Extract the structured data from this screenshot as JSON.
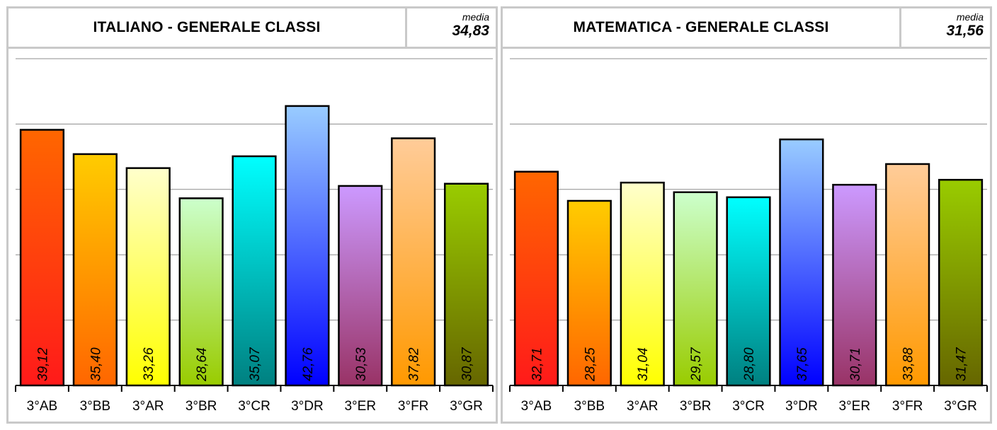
{
  "charts": [
    {
      "title": "ITALIANO - GENERALE CLASSI",
      "media_label": "media",
      "media_value": "34,83"
    },
    {
      "title": "MATEMATICA - GENERALE CLASSI",
      "media_label": "media",
      "media_value": "31,56"
    }
  ],
  "chart_data": [
    {
      "type": "bar",
      "title": "ITALIANO - GENERALE CLASSI",
      "categories": [
        "3°AB",
        "3°BB",
        "3°AR",
        "3°BR",
        "3°CR",
        "3°DR",
        "3°ER",
        "3°FR",
        "3°GR"
      ],
      "values": [
        39.12,
        35.4,
        33.26,
        28.64,
        35.07,
        42.76,
        30.53,
        37.82,
        30.87
      ],
      "value_labels": [
        "39,12",
        "35,40",
        "33,26",
        "28,64",
        "35,07",
        "42,76",
        "30,53",
        "37,82",
        "30,87"
      ],
      "ylim": [
        0,
        50
      ],
      "grid": true,
      "colors": [
        [
          "#ff6600",
          "#ff1a1a"
        ],
        [
          "#ffcc00",
          "#ff6600"
        ],
        [
          "#ffffcc",
          "#ffff00"
        ],
        [
          "#ccffcc",
          "#99cc00"
        ],
        [
          "#00ffff",
          "#008080"
        ],
        [
          "#99ccff",
          "#0000ff"
        ],
        [
          "#cc99ff",
          "#993366"
        ],
        [
          "#ffcc99",
          "#ff9900"
        ],
        [
          "#99cc00",
          "#666600"
        ]
      ]
    },
    {
      "type": "bar",
      "title": "MATEMATICA - GENERALE CLASSI",
      "categories": [
        "3°AB",
        "3°BB",
        "3°AR",
        "3°BR",
        "3°CR",
        "3°DR",
        "3°ER",
        "3°FR",
        "3°GR"
      ],
      "values": [
        32.71,
        28.25,
        31.04,
        29.57,
        28.8,
        37.65,
        30.71,
        33.88,
        31.47
      ],
      "value_labels": [
        "32,71",
        "28,25",
        "31,04",
        "29,57",
        "28,80",
        "37,65",
        "30,71",
        "33,88",
        "31,47"
      ],
      "ylim": [
        0,
        50
      ],
      "grid": true,
      "colors": [
        [
          "#ff6600",
          "#ff1a1a"
        ],
        [
          "#ffcc00",
          "#ff6600"
        ],
        [
          "#ffffcc",
          "#ffff00"
        ],
        [
          "#ccffcc",
          "#99cc00"
        ],
        [
          "#00ffff",
          "#008080"
        ],
        [
          "#99ccff",
          "#0000ff"
        ],
        [
          "#cc99ff",
          "#993366"
        ],
        [
          "#ffcc99",
          "#ff9900"
        ],
        [
          "#99cc00",
          "#666600"
        ]
      ]
    }
  ]
}
